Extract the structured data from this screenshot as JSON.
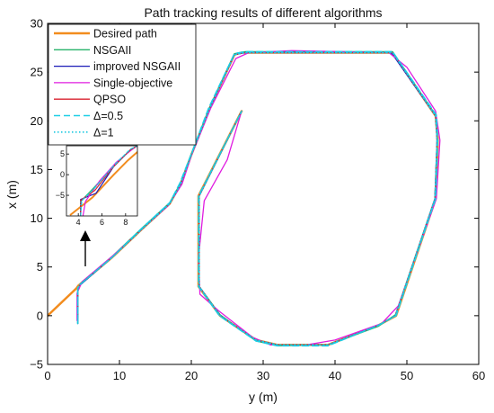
{
  "chart_data": {
    "type": "line",
    "title": "Path tracking results of different algorithms",
    "xlabel": "y (m)",
    "ylabel": "x (m)",
    "xlim": [
      0,
      60
    ],
    "ylim": [
      -5,
      30
    ],
    "xticks": [
      0,
      10,
      20,
      30,
      40,
      50,
      60
    ],
    "yticks": [
      -5,
      0,
      5,
      10,
      15,
      20,
      25,
      30
    ],
    "grid": false,
    "legend_position": "top-left",
    "series": [
      {
        "name": "Desired path",
        "color": "#f28c1e",
        "dash": "solid",
        "width": 2.5,
        "points": [
          [
            0,
            0
          ],
          [
            4,
            2.8
          ],
          [
            4.3,
            3.1
          ],
          [
            9,
            6
          ],
          [
            13,
            8.8
          ],
          [
            17,
            11.5
          ],
          [
            18.5,
            13.5
          ],
          [
            20,
            16.5
          ],
          [
            22.5,
            21.2
          ],
          [
            26,
            26.8
          ],
          [
            27,
            27
          ],
          [
            48,
            27
          ],
          [
            54,
            20.5
          ],
          [
            54.3,
            18
          ],
          [
            54,
            12
          ],
          [
            48.5,
            0
          ],
          [
            46,
            -1
          ],
          [
            39,
            -3
          ],
          [
            32,
            -3
          ],
          [
            29,
            -2.5
          ],
          [
            24,
            0
          ],
          [
            21,
            3
          ],
          [
            21,
            12.3
          ],
          [
            27,
            21
          ]
        ]
      },
      {
        "name": "NSGAII",
        "color": "#27b36a",
        "dash": "solid",
        "width": 1.3,
        "points": [
          [
            4.2,
            -0.8
          ],
          [
            4.2,
            2.8
          ],
          [
            4.6,
            3.3
          ],
          [
            9,
            6.1
          ],
          [
            13,
            8.9
          ],
          [
            17,
            11.6
          ],
          [
            18.5,
            13.6
          ],
          [
            20,
            16.6
          ],
          [
            22.5,
            21.3
          ],
          [
            26,
            26.9
          ],
          [
            27.5,
            27.1
          ],
          [
            48,
            27.1
          ],
          [
            54,
            20.6
          ],
          [
            54.2,
            18
          ],
          [
            53.9,
            12
          ],
          [
            48.4,
            0.1
          ],
          [
            46,
            -1.1
          ],
          [
            39,
            -3
          ],
          [
            32,
            -3.1
          ],
          [
            29,
            -2.6
          ],
          [
            24,
            0.1
          ],
          [
            21.1,
            3
          ],
          [
            21.1,
            12.3
          ],
          [
            27,
            21
          ]
        ]
      },
      {
        "name": "improved NSGAII",
        "color": "#1a1ab8",
        "dash": "solid",
        "width": 1.3,
        "points": [
          [
            4.2,
            -0.8
          ],
          [
            4.2,
            2.7
          ],
          [
            4.6,
            3.2
          ],
          [
            9,
            6
          ],
          [
            13,
            8.8
          ],
          [
            17,
            11.5
          ],
          [
            18.5,
            13.5
          ],
          [
            20,
            16.5
          ],
          [
            22.5,
            21.2
          ],
          [
            26,
            26.8
          ],
          [
            27.5,
            27
          ],
          [
            47.8,
            27
          ],
          [
            48.6,
            26.2
          ],
          [
            54,
            20.5
          ],
          [
            54.2,
            18
          ],
          [
            53.9,
            12
          ],
          [
            48.4,
            0
          ],
          [
            46,
            -1
          ],
          [
            39,
            -3
          ],
          [
            32,
            -3
          ],
          [
            29,
            -2.5
          ],
          [
            24,
            0
          ],
          [
            21.1,
            3
          ],
          [
            21.1,
            12.3
          ],
          [
            27,
            21
          ]
        ]
      },
      {
        "name": "Single-objective",
        "color": "#e01ce0",
        "dash": "solid",
        "width": 1.3,
        "points": [
          [
            4.1,
            -0.5
          ],
          [
            4.1,
            2.3
          ],
          [
            4.8,
            3.5
          ],
          [
            9,
            6.1
          ],
          [
            13,
            8.8
          ],
          [
            16.8,
            11.3
          ],
          [
            18.7,
            13.5
          ],
          [
            20,
            16.4
          ],
          [
            22.7,
            21.3
          ],
          [
            26.2,
            26.4
          ],
          [
            28,
            27
          ],
          [
            34,
            27.2
          ],
          [
            47.5,
            27
          ],
          [
            50,
            25.5
          ],
          [
            54,
            21
          ],
          [
            54.6,
            18
          ],
          [
            54.1,
            12
          ],
          [
            48.8,
            1
          ],
          [
            46.5,
            -0.8
          ],
          [
            40,
            -2.5
          ],
          [
            36,
            -3
          ],
          [
            31,
            -3
          ],
          [
            28.5,
            -2.2
          ],
          [
            23.8,
            0.5
          ],
          [
            21.2,
            2.2
          ],
          [
            21,
            6
          ],
          [
            21.8,
            11.8
          ],
          [
            25,
            16
          ],
          [
            27,
            21
          ]
        ]
      },
      {
        "name": "QPSO",
        "color": "#d9202e",
        "dash": "solid",
        "width": 1.3,
        "points": [
          [
            4.2,
            -0.8
          ],
          [
            4.2,
            2.8
          ],
          [
            4.6,
            3.3
          ],
          [
            9,
            6
          ],
          [
            13,
            8.8
          ],
          [
            17,
            11.5
          ],
          [
            18.5,
            13.5
          ],
          [
            20,
            16.5
          ],
          [
            22.5,
            21.2
          ],
          [
            26,
            26.8
          ],
          [
            27.5,
            27
          ],
          [
            48,
            27
          ],
          [
            54,
            20.5
          ],
          [
            54.2,
            18
          ],
          [
            53.9,
            12
          ],
          [
            48.4,
            0
          ],
          [
            46,
            -1
          ],
          [
            39,
            -3
          ],
          [
            32,
            -3
          ],
          [
            29,
            -2.5
          ],
          [
            24,
            0
          ],
          [
            21.1,
            3
          ],
          [
            21.1,
            12.3
          ],
          [
            27,
            21
          ]
        ]
      },
      {
        "name": "Δ=0.5",
        "color": "#1ecfe6",
        "dash": "7,4",
        "width": 1.5,
        "points": [
          [
            4.2,
            -0.8
          ],
          [
            4.2,
            2.9
          ],
          [
            4.5,
            3.2
          ],
          [
            9,
            6
          ],
          [
            13,
            8.9
          ],
          [
            17,
            11.6
          ],
          [
            18.4,
            13.6
          ],
          [
            20,
            16.6
          ],
          [
            22.4,
            21.3
          ],
          [
            26,
            26.9
          ],
          [
            27.4,
            27.1
          ],
          [
            48,
            27.1
          ],
          [
            54.1,
            20.6
          ],
          [
            54.3,
            18
          ],
          [
            54,
            12
          ],
          [
            48.5,
            0
          ],
          [
            46,
            -1
          ],
          [
            39,
            -3.1
          ],
          [
            32,
            -3.1
          ],
          [
            29,
            -2.6
          ],
          [
            23.9,
            0
          ],
          [
            21,
            3
          ],
          [
            21,
            12.3
          ],
          [
            27,
            21
          ]
        ]
      },
      {
        "name": "Δ=1",
        "color": "#19c8e0",
        "dash": "1.5,2.5",
        "width": 1.6,
        "points": [
          [
            4.2,
            -0.8
          ],
          [
            4.2,
            2.8
          ],
          [
            4.5,
            3.2
          ],
          [
            9,
            6
          ],
          [
            13,
            8.8
          ],
          [
            17,
            11.5
          ],
          [
            18.5,
            13.5
          ],
          [
            20,
            16.5
          ],
          [
            22.5,
            21.2
          ],
          [
            26,
            26.8
          ],
          [
            27.5,
            27
          ],
          [
            48,
            27
          ],
          [
            54,
            20.5
          ],
          [
            54.2,
            18
          ],
          [
            53.9,
            12
          ],
          [
            48.4,
            0
          ],
          [
            46,
            -1
          ],
          [
            39,
            -3
          ],
          [
            32,
            -3
          ],
          [
            29,
            -2.5
          ],
          [
            24,
            0
          ],
          [
            21.1,
            3
          ],
          [
            21.1,
            12.3
          ],
          [
            27,
            21
          ]
        ]
      }
    ],
    "inset": {
      "xlim": [
        3,
        9
      ],
      "ylim": [
        -10,
        7
      ],
      "xticks": [
        4,
        6,
        8
      ],
      "yticks": [
        -5,
        0,
        5
      ],
      "curves": [
        {
          "color": "#f28c1e",
          "width": 2,
          "points": [
            [
              3.3,
              -9.8
            ],
            [
              5.2,
              -5.5
            ],
            [
              7,
              0
            ],
            [
              8.2,
              3.5
            ],
            [
              9,
              5.5
            ]
          ]
        },
        {
          "color": "#27b36a",
          "width": 1.2,
          "points": [
            [
              4.2,
              -10
            ],
            [
              4.2,
              -6.5
            ],
            [
              5.2,
              -3.5
            ],
            [
              7,
              2
            ],
            [
              8.4,
              6
            ],
            [
              9,
              7
            ]
          ]
        },
        {
          "color": "#1a1ab8",
          "width": 1.2,
          "points": [
            [
              4.2,
              -10
            ],
            [
              4.2,
              -6
            ],
            [
              5.5,
              -4.5
            ],
            [
              7,
              2
            ],
            [
              8.4,
              6
            ],
            [
              9,
              7
            ]
          ]
        },
        {
          "color": "#e01ce0",
          "width": 1.2,
          "points": [
            [
              4.4,
              -10
            ],
            [
              4.6,
              -6.5
            ],
            [
              5.8,
              -1.5
            ],
            [
              7.2,
              3
            ],
            [
              8.5,
              6
            ],
            [
              9,
              7
            ]
          ]
        },
        {
          "color": "#d9202e",
          "width": 1.2,
          "points": [
            [
              4.2,
              -10
            ],
            [
              4.2,
              -6.2
            ],
            [
              5.4,
              -3.8
            ],
            [
              7,
              2
            ],
            [
              8.4,
              6
            ],
            [
              9,
              7
            ]
          ]
        },
        {
          "color": "#1ecfe6",
          "width": 1.2,
          "dash": "4,2",
          "points": [
            [
              4.2,
              -10
            ],
            [
              4.3,
              -6.3
            ],
            [
              5.3,
              -3.5
            ],
            [
              7,
              2.2
            ],
            [
              8.4,
              6.2
            ],
            [
              9,
              7
            ]
          ]
        },
        {
          "color": "#19c8e0",
          "width": 1.2,
          "dash": "1,2",
          "points": [
            [
              4.2,
              -10
            ],
            [
              4.2,
              -6.6
            ],
            [
              5.3,
              -3.6
            ],
            [
              7,
              2.1
            ],
            [
              8.4,
              6.1
            ],
            [
              9,
              7
            ]
          ]
        }
      ]
    }
  }
}
